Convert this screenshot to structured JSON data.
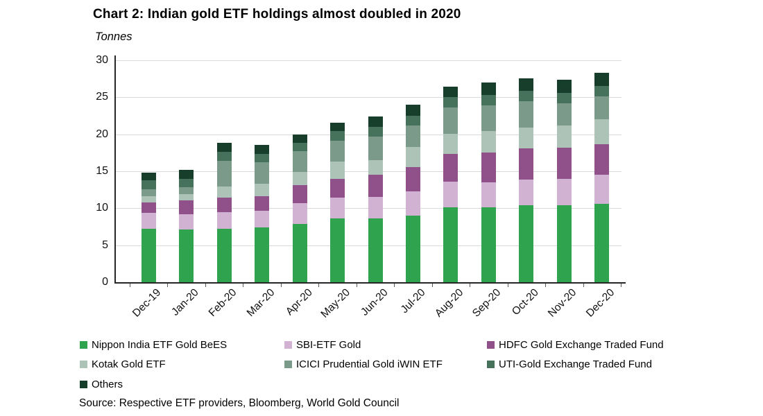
{
  "title": "Chart 2: Indian gold ETF holdings almost doubled in 2020",
  "subtitle": "Tonnes",
  "source": "Source: Respective ETF providers, Bloomberg, World Gold Council",
  "chart_data": {
    "type": "bar",
    "stacked": true,
    "title": "Chart 2: Indian gold ETF holdings almost doubled in 2020",
    "ylabel": "Tonnes",
    "xlabel": "",
    "ylim": [
      0,
      30
    ],
    "yticks": [
      0,
      5,
      10,
      15,
      20,
      25,
      30
    ],
    "grid": true,
    "legend_position": "bottom",
    "categories": [
      "Dec-19",
      "Jan-20",
      "Feb-20",
      "Mar-20",
      "Apr-20",
      "May-20",
      "Jun-20",
      "Jul-20",
      "Aug-20",
      "Sep-20",
      "Oct-20",
      "Nov-20",
      "Dec-20"
    ],
    "totals": [
      14.8,
      15.2,
      18.8,
      18.6,
      20.0,
      21.6,
      22.4,
      24.0,
      26.4,
      27.0,
      27.6,
      27.4,
      28.3
    ],
    "series": [
      {
        "name": "Nippon India ETF Gold BeES",
        "color": "#2FA34D",
        "values": [
          7.2,
          7.1,
          7.2,
          7.4,
          7.9,
          8.6,
          8.6,
          9.0,
          10.1,
          10.1,
          10.4,
          10.4,
          10.6
        ]
      },
      {
        "name": "SBI-ETF Gold",
        "color": "#D2B2D3",
        "values": [
          2.2,
          2.1,
          2.3,
          2.3,
          2.8,
          2.8,
          2.9,
          3.3,
          3.5,
          3.4,
          3.5,
          3.6,
          3.9
        ]
      },
      {
        "name": "HDFC Gold Exchange Traded Fund",
        "color": "#90508A",
        "values": [
          1.4,
          1.9,
          1.9,
          1.9,
          2.4,
          2.6,
          3.0,
          3.3,
          3.7,
          4.0,
          4.2,
          4.2,
          4.2
        ]
      },
      {
        "name": "Kotak Gold ETF",
        "color": "#ADC3B8",
        "values": [
          0.8,
          0.8,
          1.5,
          1.7,
          1.8,
          2.3,
          2.0,
          2.7,
          2.8,
          2.9,
          2.8,
          3.0,
          3.3
        ]
      },
      {
        "name": "ICICI Prudential Gold iWIN ETF",
        "color": "#7B9A8A",
        "values": [
          1.0,
          0.9,
          3.5,
          2.9,
          2.8,
          2.8,
          3.2,
          2.9,
          3.5,
          3.5,
          3.6,
          3.0,
          3.1
        ]
      },
      {
        "name": "UTI-Gold Exchange Traded Fund",
        "color": "#46715B",
        "values": [
          1.2,
          1.2,
          1.2,
          1.1,
          1.1,
          1.3,
          1.3,
          1.3,
          1.4,
          1.4,
          1.4,
          1.4,
          1.4
        ]
      },
      {
        "name": "Others",
        "color": "#173E2B",
        "values": [
          1.0,
          1.2,
          1.2,
          1.3,
          1.2,
          1.2,
          1.4,
          1.5,
          1.4,
          1.7,
          1.7,
          1.8,
          1.8
        ]
      }
    ]
  }
}
